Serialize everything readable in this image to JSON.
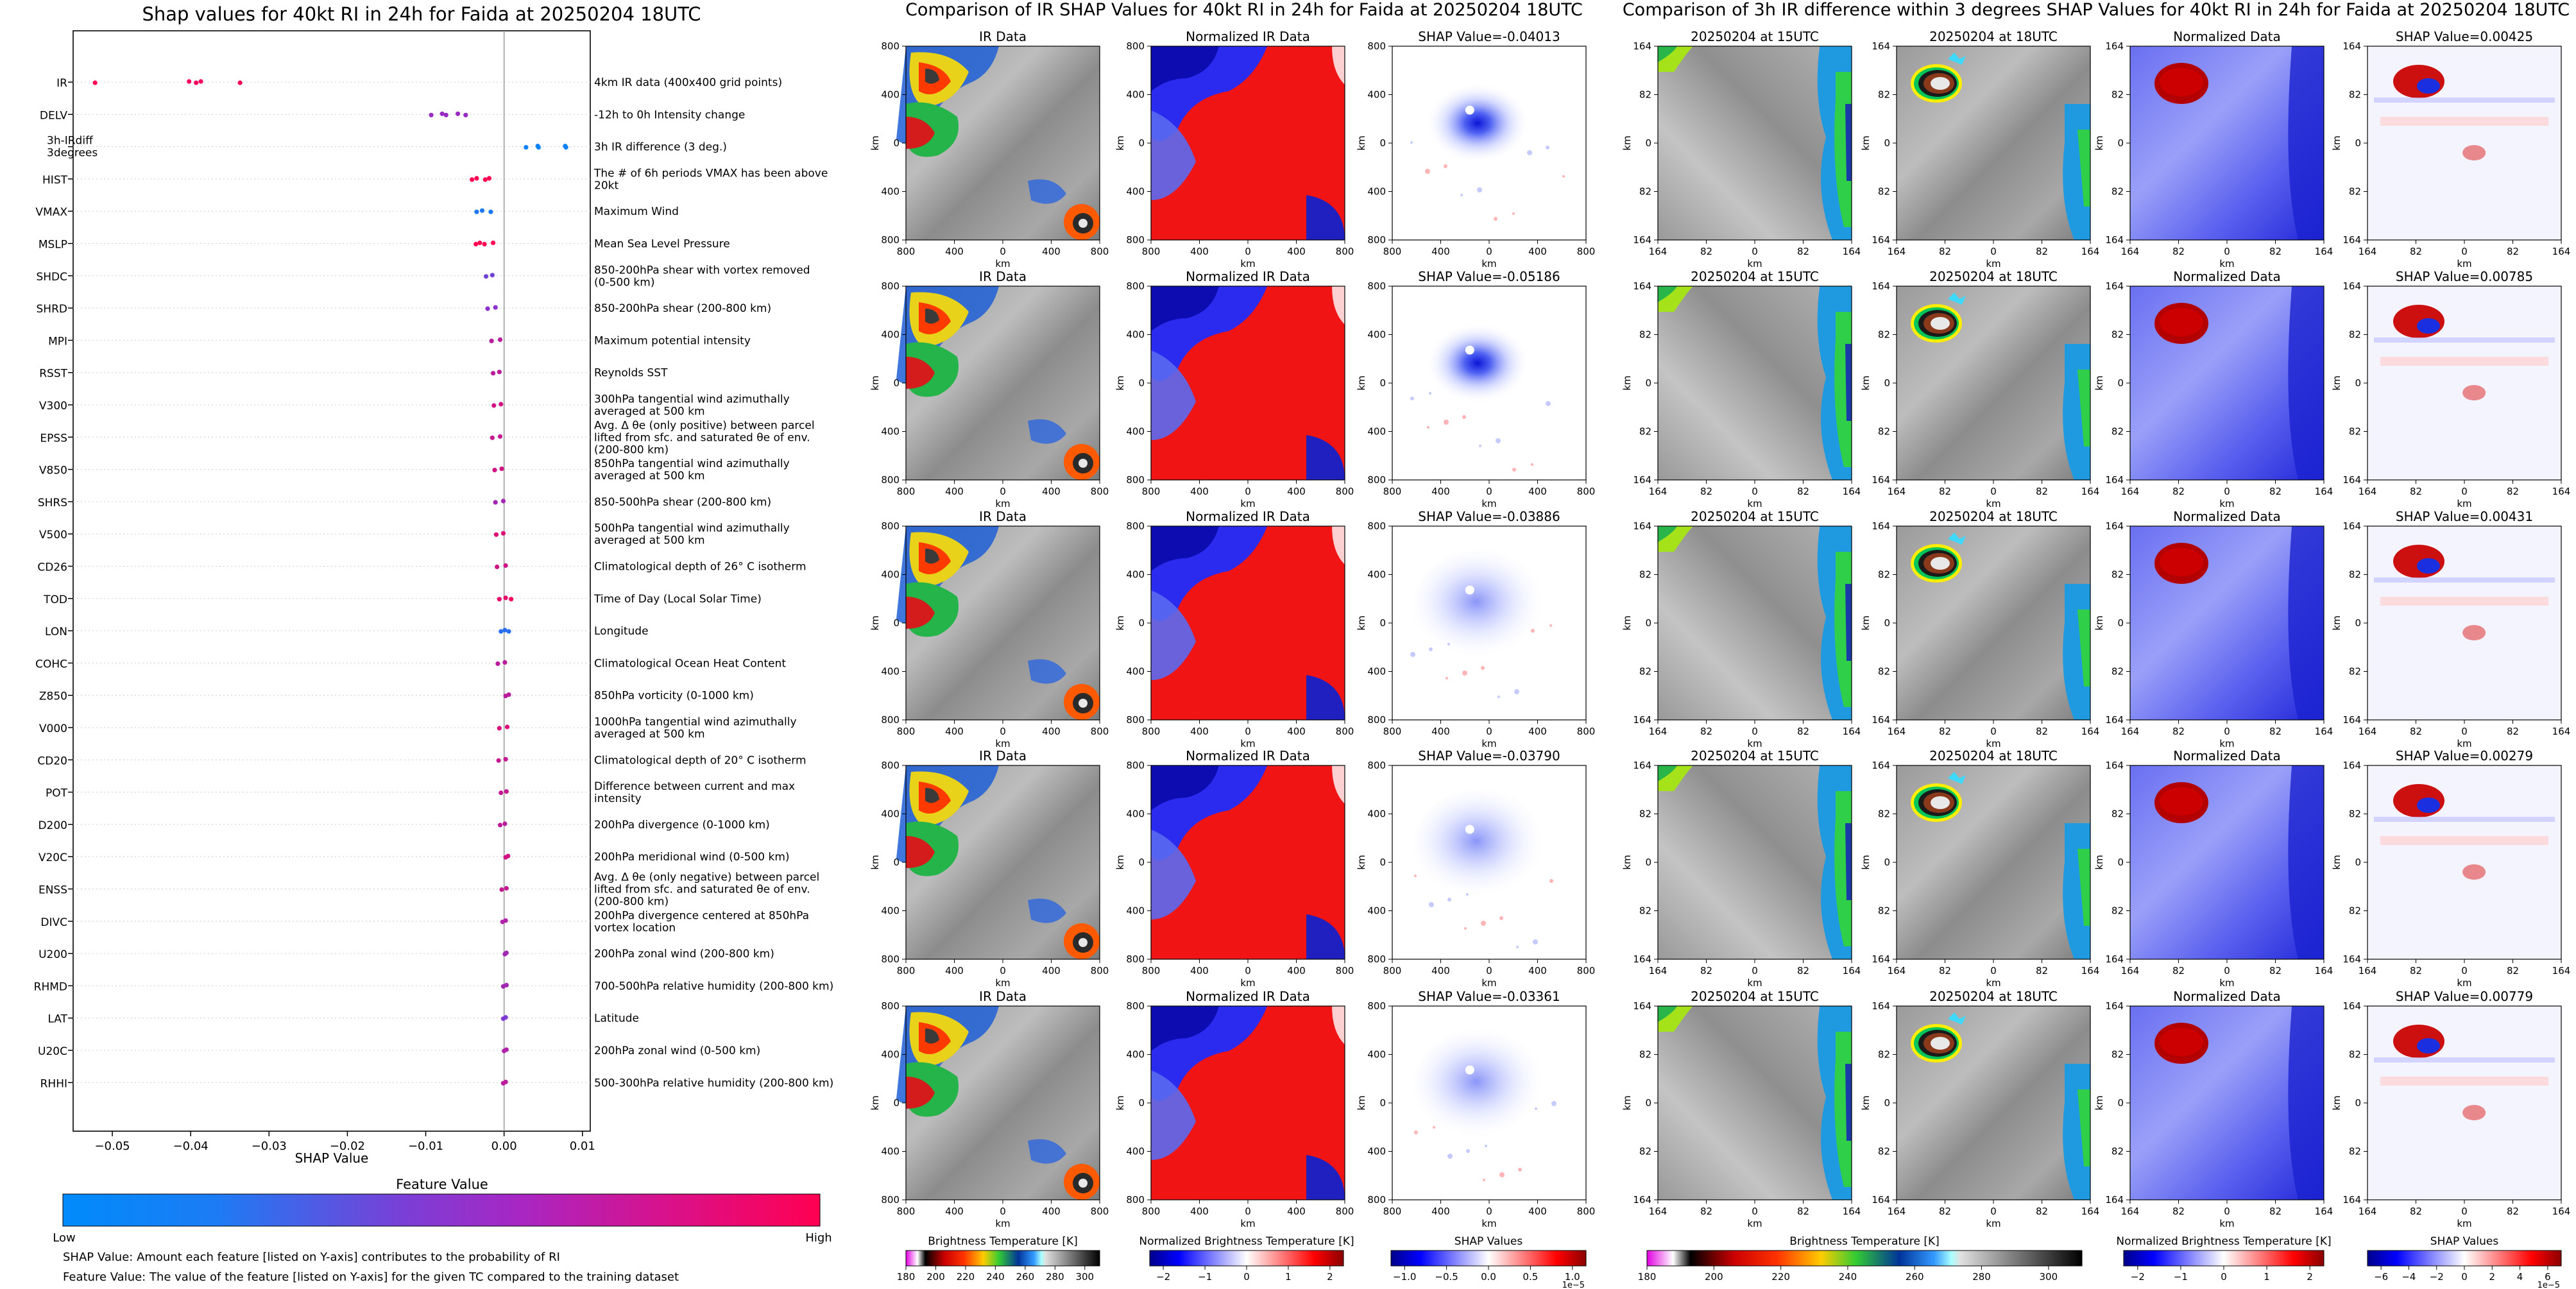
{
  "left_title": "Shap values for 40kt RI in 24h for Faida at 20250204 18UTC",
  "mid_title": "Comparison of IR SHAP Values for 40kt RI in 24h for Faida at 20250204 18UTC",
  "right_title": "Comparison of 3h IR difference within 3 degrees SHAP Values for 40kt RI in 24h for Faida at 20250204 18UTC",
  "colorbar": {
    "title": "Feature Value",
    "low": "Low",
    "high": "High"
  },
  "notes": {
    "line1": "SHAP Value: Amount each feature [listed on Y-axis] contributes to the probability of RI",
    "line2": "Feature Value: The value of the feature [listed on Y-axis] for the given TC compared to the training dataset"
  },
  "mid_columns": [
    "IR Data",
    "Normalized IR Data"
  ],
  "right_columns": [
    "20250204 at 15UTC",
    "20250204 at 18UTC",
    "Normalized Data"
  ],
  "ir_shap_titles": [
    "SHAP Value=-0.04013",
    "SHAP Value=-0.05186",
    "SHAP Value=-0.03886",
    "SHAP Value=-0.03790",
    "SHAP Value=-0.03361"
  ],
  "diff_shap_titles": [
    "SHAP Value=0.00425",
    "SHAP Value=0.00785",
    "SHAP Value=0.00431",
    "SHAP Value=0.00279",
    "SHAP Value=0.00779"
  ],
  "axis_label_km": "km",
  "ir_ticks": [
    "800",
    "400",
    "0",
    "400",
    "800"
  ],
  "diff_ticks": [
    "164",
    "82",
    "0",
    "82",
    "164"
  ],
  "bottom_colorbars": [
    {
      "label": "Brightness Temperature [K]",
      "ticks": [
        "180",
        "200",
        "220",
        "240",
        "260",
        "280",
        "300"
      ],
      "sci": ""
    },
    {
      "label": "Normalized Brightness Temperature [K]",
      "ticks": [
        "−2",
        "−1",
        "0",
        "1",
        "2"
      ],
      "sci": ""
    },
    {
      "label": "SHAP Values",
      "ticks": [
        "−1.0",
        "−0.5",
        "0.0",
        "0.5",
        "1.0"
      ],
      "sci": "1e−5"
    },
    {
      "label": "Brightness Temperature [K]",
      "ticks": [
        "180",
        "200",
        "220",
        "240",
        "260",
        "280",
        "300"
      ],
      "sci": ""
    },
    {
      "label": "Normalized Brightness Temperature [K]",
      "ticks": [
        "−2",
        "−1",
        "0",
        "1",
        "2"
      ],
      "sci": ""
    },
    {
      "label": "SHAP Values",
      "ticks": [
        "−6",
        "−4",
        "−2",
        "0",
        "2",
        "4",
        "6"
      ],
      "sci": "1e−5"
    }
  ],
  "chart_data": {
    "type": "scatter",
    "title": "Shap values for 40kt RI in 24h for Faida at 20250204 18UTC",
    "xlabel": "SHAP Value",
    "xlim": [
      -0.055,
      0.011
    ],
    "xticks": [
      -0.05,
      -0.04,
      -0.03,
      -0.02,
      -0.01,
      0.0,
      0.01
    ],
    "xtick_labels": [
      "−0.05",
      "−0.04",
      "−0.03",
      "−0.02",
      "−0.01",
      "0.00",
      "0.01"
    ],
    "features": [
      {
        "name": "IR",
        "description": "4km IR data (400x400 grid points)",
        "points": [
          [
            -0.0522,
            1.0
          ],
          [
            -0.0402,
            0.95
          ],
          [
            -0.0393,
            0.95
          ],
          [
            -0.0387,
            0.95
          ],
          [
            -0.0337,
            1.0
          ]
        ]
      },
      {
        "name": "DELV",
        "description": "-12h to 0h Intensity change",
        "points": [
          [
            -0.0093,
            0.55
          ],
          [
            -0.0079,
            0.55
          ],
          [
            -0.0074,
            0.55
          ],
          [
            -0.0059,
            0.55
          ],
          [
            -0.0049,
            0.55
          ]
        ]
      },
      {
        "name": "3h-IRdiff 3degrees",
        "description": "3h IR difference (3 deg.)",
        "points": [
          [
            0.0028,
            0.05
          ],
          [
            0.0043,
            0.05
          ],
          [
            0.0044,
            0.05
          ],
          [
            0.0078,
            0.05
          ],
          [
            0.0079,
            0.05
          ]
        ]
      },
      {
        "name": "HIST",
        "description": "The # of 6h periods VMAX has been above 20kt",
        "points": [
          [
            -0.0041,
            1.0
          ],
          [
            -0.0035,
            1.0
          ],
          [
            -0.0024,
            1.0
          ],
          [
            -0.0019,
            1.0
          ]
        ]
      },
      {
        "name": "VMAX",
        "description": "Maximum Wind",
        "points": [
          [
            -0.0035,
            0.1
          ],
          [
            -0.0028,
            0.1
          ],
          [
            -0.0017,
            0.1
          ]
        ]
      },
      {
        "name": "MSLP",
        "description": "Mean Sea Level Pressure",
        "points": [
          [
            -0.0036,
            1.0
          ],
          [
            -0.0031,
            1.0
          ],
          [
            -0.0025,
            1.0
          ],
          [
            -0.0014,
            1.0
          ]
        ]
      },
      {
        "name": "SHDC",
        "description": "850-200hPa shear with vortex removed (0-500 km)",
        "points": [
          [
            -0.0023,
            0.4
          ],
          [
            -0.0015,
            0.4
          ]
        ]
      },
      {
        "name": "SHRD",
        "description": "850-200hPa shear (200-800 km)",
        "points": [
          [
            -0.0021,
            0.5
          ],
          [
            -0.0011,
            0.5
          ]
        ]
      },
      {
        "name": "MPI",
        "description": "Maximum potential intensity",
        "points": [
          [
            -0.0016,
            0.7
          ],
          [
            -0.0005,
            0.7
          ]
        ]
      },
      {
        "name": "RSST",
        "description": "Reynolds SST",
        "points": [
          [
            -0.0014,
            0.7
          ],
          [
            -0.0006,
            0.7
          ]
        ]
      },
      {
        "name": "V300",
        "description": "300hPa tangential wind azimuthally averaged at 500 km",
        "points": [
          [
            -0.0013,
            0.8
          ],
          [
            -0.0004,
            0.8
          ]
        ]
      },
      {
        "name": "EPSS",
        "description": "Avg. Δ θe (only positive) between parcel lifted from sfc. and saturated θe of env. (200-800 km)",
        "points": [
          [
            -0.0015,
            0.75
          ],
          [
            -0.0005,
            0.75
          ]
        ]
      },
      {
        "name": "V850",
        "description": "850hPa tangential wind azimuthally averaged at 500 km",
        "points": [
          [
            -0.0012,
            0.8
          ],
          [
            -0.0003,
            0.8
          ]
        ]
      },
      {
        "name": "SHRS",
        "description": "850-500hPa shear (200-800 km)",
        "points": [
          [
            -0.0011,
            0.6
          ],
          [
            -0.0001,
            0.6
          ]
        ]
      },
      {
        "name": "V500",
        "description": "500hPa tangential wind azimuthally averaged at 500 km",
        "points": [
          [
            -0.001,
            0.85
          ],
          [
            -0.0001,
            0.85
          ]
        ]
      },
      {
        "name": "CD26",
        "description": "Climatological depth of 26° C isotherm",
        "points": [
          [
            -0.0009,
            0.8
          ],
          [
            0.0002,
            0.8
          ]
        ]
      },
      {
        "name": "TOD",
        "description": "Time of Day (Local Solar Time)",
        "points": [
          [
            -0.0006,
            0.9
          ],
          [
            0.0002,
            0.9
          ],
          [
            0.0009,
            0.95
          ]
        ]
      },
      {
        "name": "LON",
        "description": "Longitude",
        "points": [
          [
            -0.0004,
            0.15
          ],
          [
            0.0001,
            0.15
          ],
          [
            0.0006,
            0.15
          ]
        ]
      },
      {
        "name": "COHC",
        "description": "Climatological Ocean Heat Content",
        "points": [
          [
            -0.0008,
            0.7
          ],
          [
            0.0001,
            0.7
          ]
        ]
      },
      {
        "name": "Z850",
        "description": "850hPa vorticity (0-1000 km)",
        "points": [
          [
            0.0002,
            0.7
          ],
          [
            0.0006,
            0.7
          ]
        ]
      },
      {
        "name": "V000",
        "description": "1000hPa tangential wind azimuthally averaged at 500 km",
        "points": [
          [
            -0.0006,
            0.85
          ],
          [
            0.0004,
            0.85
          ]
        ]
      },
      {
        "name": "CD20",
        "description": "Climatological depth of 20° C isotherm",
        "points": [
          [
            -0.0007,
            0.75
          ],
          [
            0.0002,
            0.75
          ]
        ]
      },
      {
        "name": "POT",
        "description": "Difference between current and max intensity",
        "points": [
          [
            -0.0004,
            0.75
          ],
          [
            0.0003,
            0.75
          ]
        ]
      },
      {
        "name": "D200",
        "description": "200hPa divergence (0-1000 km)",
        "points": [
          [
            -0.0005,
            0.7
          ],
          [
            0.0001,
            0.7
          ]
        ]
      },
      {
        "name": "V20C",
        "description": "200hPa meridional wind (0-500 km)",
        "points": [
          [
            0.0002,
            0.8
          ],
          [
            0.0005,
            0.8
          ]
        ]
      },
      {
        "name": "ENSS",
        "description": "Avg. Δ θe (only negative) between parcel lifted from sfc. and saturated θe of env. (200-800 km)",
        "points": [
          [
            -0.0003,
            0.75
          ],
          [
            0.0003,
            0.75
          ]
        ]
      },
      {
        "name": "DIVC",
        "description": "200hPa divergence centered at 850hPa vortex location",
        "points": [
          [
            -0.0002,
            0.65
          ],
          [
            0.0002,
            0.65
          ]
        ]
      },
      {
        "name": "U200",
        "description": "200hPa zonal wind (200-800 km)",
        "points": [
          [
            0.0001,
            0.6
          ],
          [
            0.0003,
            0.6
          ]
        ]
      },
      {
        "name": "RHMD",
        "description": "700-500hPa relative humidity (200-800 km)",
        "points": [
          [
            -0.0001,
            0.6
          ],
          [
            0.0003,
            0.6
          ]
        ]
      },
      {
        "name": "LAT",
        "description": "Latitude",
        "points": [
          [
            -0.0001,
            0.45
          ],
          [
            0.0002,
            0.45
          ]
        ]
      },
      {
        "name": "U20C",
        "description": "200hPa zonal wind (0-500 km)",
        "points": [
          [
            0.0,
            0.65
          ],
          [
            0.0003,
            0.65
          ]
        ]
      },
      {
        "name": "RHHI",
        "description": "500-300hPa relative humidity (200-800 km)",
        "points": [
          [
            -0.0001,
            0.7
          ],
          [
            0.0002,
            0.7
          ]
        ]
      }
    ]
  }
}
